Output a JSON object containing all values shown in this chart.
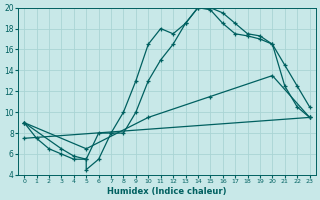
{
  "xlabel": "Humidex (Indice chaleur)",
  "xlim": [
    -0.5,
    23.5
  ],
  "ylim": [
    4,
    20
  ],
  "xticks": [
    0,
    1,
    2,
    3,
    4,
    5,
    6,
    7,
    8,
    9,
    10,
    11,
    12,
    13,
    14,
    15,
    16,
    17,
    18,
    19,
    20,
    21,
    22,
    23
  ],
  "yticks": [
    4,
    6,
    8,
    10,
    12,
    14,
    16,
    18,
    20
  ],
  "bg_color": "#c8e8e8",
  "line_color": "#006060",
  "grid_color": "#aad4d4",
  "lines": [
    {
      "x": [
        0,
        1,
        2,
        3,
        4,
        5,
        6,
        7,
        8,
        9,
        10,
        11,
        12,
        13,
        14,
        15,
        16,
        17,
        18,
        19,
        20,
        21,
        22,
        23
      ],
      "y": [
        9,
        7.5,
        6.5,
        6.0,
        5.5,
        5.5,
        8.0,
        8.0,
        10.0,
        13.0,
        16.5,
        18.0,
        17.5,
        18.5,
        20.0,
        19.8,
        18.5,
        17.5,
        17.3,
        17.0,
        16.5,
        14.5,
        12.5,
        10.5
      ]
    },
    {
      "x": [
        0,
        3,
        4,
        5,
        5,
        6,
        7,
        8,
        9,
        10,
        11,
        12,
        13,
        14,
        15,
        16,
        17,
        18,
        19,
        20,
        21,
        22,
        23
      ],
      "y": [
        9,
        6.5,
        5.8,
        5.5,
        4.5,
        5.5,
        8.0,
        8.0,
        10.0,
        13.0,
        15.0,
        16.5,
        18.5,
        20.0,
        20.0,
        19.5,
        18.5,
        17.5,
        17.3,
        16.5,
        12.5,
        10.5,
        9.5
      ]
    },
    {
      "x": [
        0,
        5,
        10,
        15,
        20,
        23
      ],
      "y": [
        9,
        6.5,
        9.5,
        11.5,
        13.5,
        9.5
      ]
    },
    {
      "x": [
        0,
        23
      ],
      "y": [
        7.5,
        9.5
      ]
    }
  ]
}
